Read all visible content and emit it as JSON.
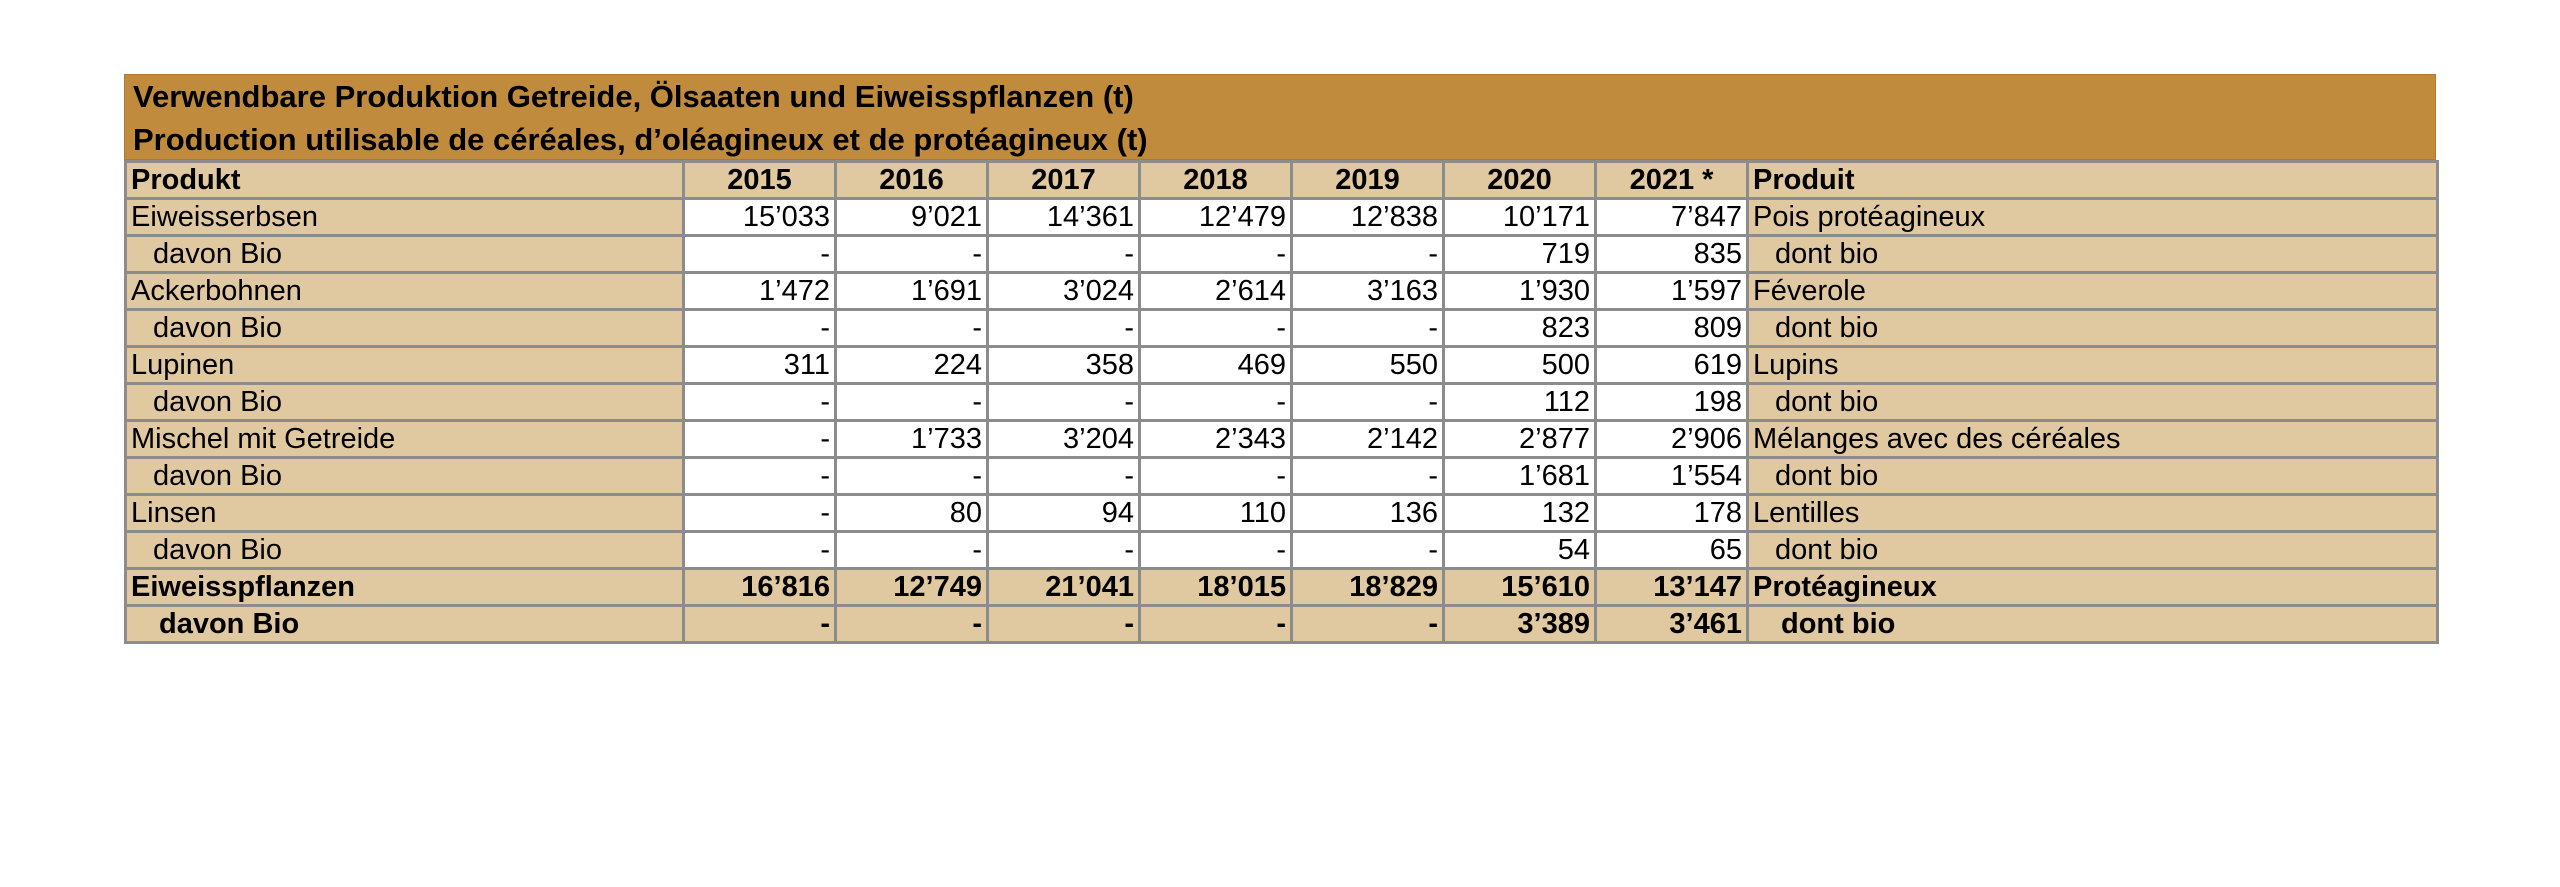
{
  "title": {
    "de": "Verwendbare Produktion Getreide, Ölsaaten und Eiweisspflanzen (t)",
    "fr": "Production utilisable de céréales, d’oléagineux et de protéagineux (t)"
  },
  "header": {
    "produkt": "Produkt",
    "years": [
      "2015",
      "2016",
      "2017",
      "2018",
      "2019",
      "2020",
      "2021 *"
    ],
    "produit": "Produit"
  },
  "rows": [
    {
      "de": "Eiweisserbsen",
      "values": [
        "15’033",
        "9’021",
        "14’361",
        "12’479",
        "12’838",
        "10’171",
        "7’847"
      ],
      "fr": "Pois protéagineux"
    },
    {
      "de": "davon Bio",
      "values": [
        "-",
        "-",
        "-",
        "-",
        "-",
        "719",
        "835"
      ],
      "fr": "dont bio"
    },
    {
      "de": "Ackerbohnen",
      "values": [
        "1’472",
        "1’691",
        "3’024",
        "2’614",
        "3’163",
        "1’930",
        "1’597"
      ],
      "fr": "Féverole"
    },
    {
      "de": "davon Bio",
      "values": [
        "-",
        "-",
        "-",
        "-",
        "-",
        "823",
        "809"
      ],
      "fr": "dont bio"
    },
    {
      "de": "Lupinen",
      "values": [
        "311",
        "224",
        "358",
        "469",
        "550",
        "500",
        "619"
      ],
      "fr": "Lupins"
    },
    {
      "de": "davon Bio",
      "values": [
        "-",
        "-",
        "-",
        "-",
        "-",
        "112",
        "198"
      ],
      "fr": "dont bio"
    },
    {
      "de": "Mischel mit Getreide",
      "values": [
        "-",
        "1’733",
        "3’204",
        "2’343",
        "2’142",
        "2’877",
        "2’906"
      ],
      "fr": "Mélanges avec des céréales"
    },
    {
      "de": "davon Bio",
      "values": [
        "-",
        "-",
        "-",
        "-",
        "-",
        "1’681",
        "1’554"
      ],
      "fr": "dont bio"
    },
    {
      "de": "Linsen",
      "values": [
        "-",
        "80",
        "94",
        "110",
        "136",
        "132",
        "178"
      ],
      "fr": "Lentilles"
    },
    {
      "de": "davon Bio",
      "values": [
        "-",
        "-",
        "-",
        "-",
        "-",
        "54",
        "65"
      ],
      "fr": "dont bio"
    },
    {
      "de": "Eiweisspflanzen",
      "values": [
        "16’816",
        "12’749",
        "21’041",
        "18’015",
        "18’829",
        "15’610",
        "13’147"
      ],
      "fr": "Protéagineux"
    },
    {
      "de": "davon Bio",
      "values": [
        "-",
        "-",
        "-",
        "-",
        "-",
        "3’389",
        "3’461"
      ],
      "fr": "dont bio"
    }
  ]
}
